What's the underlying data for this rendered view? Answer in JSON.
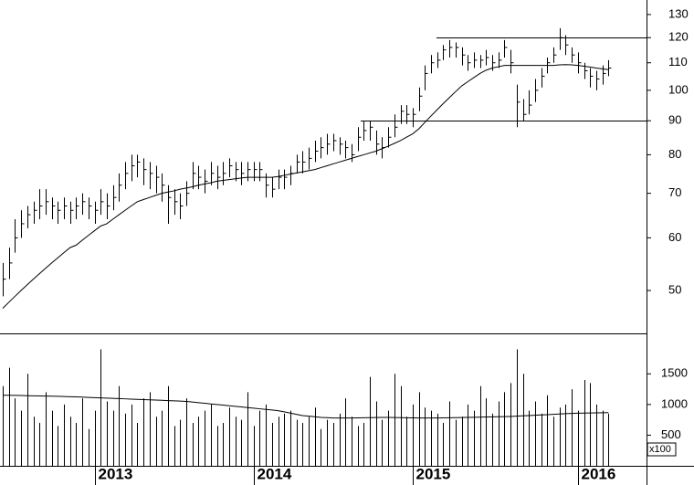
{
  "chart_data": [
    {
      "type": "ohlc",
      "log_scale": true,
      "categories": [
        null,
        null,
        null,
        null,
        null,
        null,
        null,
        null,
        null,
        null,
        null,
        null,
        null,
        null,
        null,
        "2013",
        null,
        null,
        null,
        null,
        null,
        null,
        null,
        null,
        null,
        null,
        null,
        null,
        null,
        null,
        null,
        null,
        null,
        null,
        null,
        null,
        null,
        null,
        null,
        null,
        null,
        "2014",
        null,
        null,
        null,
        null,
        null,
        null,
        null,
        null,
        null,
        null,
        null,
        null,
        null,
        null,
        null,
        null,
        null,
        null,
        null,
        null,
        null,
        null,
        null,
        null,
        null,
        "2015",
        null,
        null,
        null,
        null,
        null,
        null,
        null,
        null,
        null,
        null,
        null,
        null,
        null,
        null,
        null,
        null,
        null,
        null,
        null,
        null,
        null,
        null,
        null,
        null,
        null,
        null,
        "2016",
        null,
        null,
        null,
        null,
        null
      ],
      "high": [
        55,
        58,
        64,
        66,
        67,
        68,
        71,
        71,
        69,
        68,
        69,
        68,
        69,
        70,
        69,
        68,
        71,
        70,
        72,
        75,
        78,
        80,
        80,
        79,
        78,
        77,
        75,
        72,
        71,
        70,
        73,
        78,
        77,
        76,
        78,
        77,
        78,
        79,
        78,
        78,
        78,
        78,
        78,
        75,
        74,
        76,
        76,
        77,
        80,
        81,
        82,
        84,
        85,
        86,
        86,
        85,
        84,
        83,
        88,
        90,
        90,
        87,
        85,
        88,
        92,
        95,
        95,
        94,
        101,
        109,
        113,
        114,
        117,
        119,
        118,
        116,
        113,
        114,
        113,
        115,
        113,
        114,
        119,
        115,
        102,
        97,
        100,
        104,
        108,
        112,
        116,
        124,
        121,
        116,
        114,
        110,
        108,
        107,
        109,
        111
      ],
      "low": [
        49,
        52,
        57,
        60,
        62,
        63,
        64,
        65,
        64,
        63,
        64,
        63,
        64,
        65,
        64,
        63,
        65,
        64,
        66,
        68,
        71,
        73,
        74,
        72,
        71,
        70,
        68,
        63,
        65,
        64,
        67,
        71,
        71,
        70,
        72,
        71,
        72,
        74,
        73,
        72,
        73,
        73,
        73,
        69,
        69,
        71,
        71,
        72,
        75,
        75,
        76,
        78,
        79,
        80,
        81,
        80,
        79,
        78,
        81,
        84,
        84,
        80,
        79,
        82,
        85,
        89,
        89,
        88,
        93,
        100,
        106,
        108,
        111,
        112,
        112,
        109,
        107,
        108,
        108,
        109,
        107,
        108,
        112,
        106,
        88,
        90,
        92,
        96,
        101,
        106,
        110,
        115,
        113,
        110,
        106,
        104,
        101,
        100,
        102,
        105
      ],
      "close": [
        52,
        55,
        60,
        63,
        65,
        66,
        67,
        68,
        67,
        66,
        67,
        66,
        67,
        68,
        67,
        66,
        68,
        67,
        69,
        72,
        75,
        77,
        78,
        76,
        75,
        74,
        72,
        69,
        68,
        67,
        70,
        75,
        74,
        73,
        75,
        74,
        75,
        77,
        76,
        75,
        76,
        76,
        76,
        72,
        71,
        74,
        74,
        75,
        78,
        78,
        79,
        81,
        82,
        83,
        84,
        83,
        82,
        80,
        85,
        87,
        88,
        83,
        82,
        85,
        88,
        93,
        92,
        92,
        98,
        106,
        110,
        111,
        115,
        116,
        116,
        113,
        110,
        111,
        111,
        112,
        110,
        111,
        116,
        110,
        96,
        92,
        95,
        100,
        105,
        110,
        113,
        120,
        117,
        113,
        110,
        107,
        105,
        104,
        106,
        108
      ],
      "ma": [
        47,
        48,
        49,
        50,
        51,
        52,
        53,
        54,
        55,
        56,
        57,
        58,
        58.5,
        59.5,
        60.5,
        61.5,
        62.5,
        63,
        64,
        65,
        66,
        67,
        68,
        68.5,
        69,
        69.5,
        70,
        70.3,
        70.6,
        71,
        71.3,
        71.6,
        72,
        72.3,
        72.6,
        73,
        73.2,
        73.4,
        73.6,
        73.8,
        74,
        74,
        74,
        74,
        74,
        74.2,
        74.5,
        74.8,
        75.1,
        75.4,
        75.7,
        76,
        76.5,
        77,
        77.5,
        78,
        78.5,
        79,
        79.5,
        80,
        80.5,
        81,
        81.7,
        82.4,
        83.2,
        84,
        85,
        86,
        87.5,
        89.5,
        91.5,
        93.5,
        95.5,
        97.5,
        99.5,
        101.5,
        103,
        104.5,
        106,
        107.2,
        108,
        108.5,
        109,
        109,
        109,
        109,
        109,
        109,
        109,
        109,
        109,
        109.2,
        109.3,
        109.2,
        109,
        108.7,
        108.4,
        108,
        107.7,
        107.4
      ],
      "ylim": [
        43.1,
        136.7
      ],
      "yticks": [
        50,
        60,
        70,
        80,
        90,
        100,
        110,
        120,
        130
      ],
      "reference_lines": [
        90,
        120
      ]
    },
    {
      "type": "bar",
      "values": [
        1300,
        1600,
        1100,
        900,
        1500,
        800,
        700,
        1200,
        900,
        650,
        1000,
        800,
        700,
        1100,
        600,
        900,
        1900,
        1050,
        900,
        1300,
        850,
        1000,
        700,
        1100,
        1200,
        800,
        900,
        1300,
        650,
        750,
        1100,
        700,
        800,
        900,
        1000,
        650,
        700,
        950,
        800,
        750,
        1200,
        650,
        900,
        1000,
        700,
        800,
        850,
        900,
        750,
        700,
        800,
        950,
        600,
        750,
        700,
        850,
        1100,
        800,
        650,
        700,
        1450,
        1050,
        750,
        900,
        1500,
        1300,
        800,
        1000,
        1200,
        950,
        900,
        850,
        700,
        1050,
        750,
        800,
        1000,
        900,
        1300,
        1100,
        850,
        1050,
        1200,
        1350,
        1900,
        1500,
        900,
        1050,
        850,
        1150,
        800,
        950,
        1000,
        1250,
        900,
        1400,
        1350,
        1000,
        900,
        850
      ],
      "ma": [
        1150,
        1150,
        1148,
        1146,
        1144,
        1142,
        1140,
        1138,
        1136,
        1134,
        1130,
        1127,
        1124,
        1120,
        1116,
        1112,
        1108,
        1104,
        1100,
        1096,
        1092,
        1088,
        1084,
        1080,
        1076,
        1072,
        1068,
        1064,
        1060,
        1055,
        1050,
        1040,
        1030,
        1020,
        1010,
        1000,
        990,
        980,
        970,
        960,
        950,
        940,
        930,
        920,
        910,
        900,
        880,
        860,
        840,
        820,
        810,
        800,
        790,
        785,
        780,
        780,
        780,
        780,
        782,
        784,
        786,
        788,
        790,
        790,
        788,
        786,
        784,
        782,
        780,
        780,
        780,
        780,
        782,
        784,
        786,
        788,
        790,
        792,
        794,
        796,
        798,
        800,
        802,
        805,
        810,
        815,
        820,
        825,
        830,
        835,
        840,
        845,
        850,
        855,
        858,
        860,
        862,
        864,
        866,
        868
      ],
      "ylim": [
        0,
        2130
      ],
      "yticks": [
        500,
        1000,
        1500
      ],
      "unit_label": "x100"
    }
  ]
}
